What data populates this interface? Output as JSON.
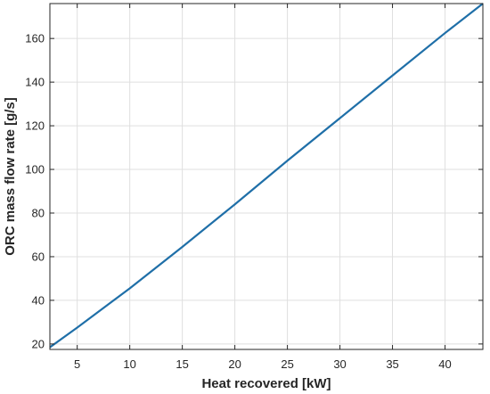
{
  "chart_data": {
    "type": "line",
    "title": "",
    "xlabel": "Heat recovered [kW]",
    "ylabel": "ORC mass flow rate [g/s]",
    "xlim": [
      2.4,
      43.6
    ],
    "ylim": [
      17.5,
      176
    ],
    "xticks": [
      5,
      10,
      15,
      20,
      25,
      30,
      35,
      40
    ],
    "yticks": [
      20,
      40,
      60,
      80,
      100,
      120,
      140,
      160
    ],
    "grid": true,
    "legend": "none",
    "series": [
      {
        "color": "#1f6fa8",
        "x": [
          2.4,
          5,
          10,
          15,
          20,
          25,
          30,
          35,
          40,
          43.6
        ],
        "y": [
          18.5,
          27.5,
          45.5,
          64.5,
          84,
          104,
          123.5,
          143,
          162.5,
          176
        ]
      }
    ]
  }
}
